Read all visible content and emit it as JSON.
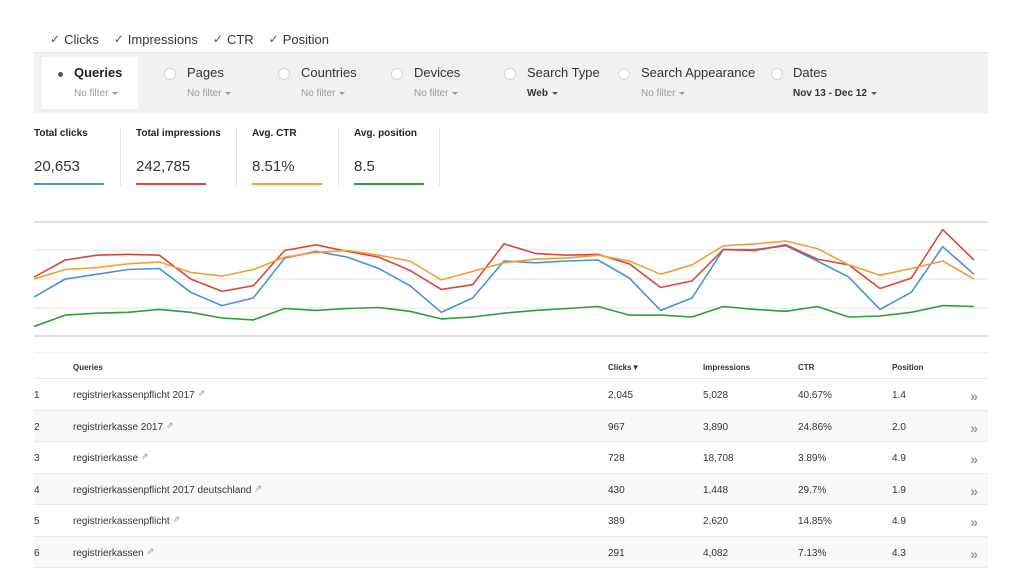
{
  "metric_toggles": [
    {
      "label": "Clicks",
      "checked": true
    },
    {
      "label": "Impressions",
      "checked": true
    },
    {
      "label": "CTR",
      "checked": true
    },
    {
      "label": "Position",
      "checked": true
    }
  ],
  "filters": [
    {
      "title": "Queries",
      "sub": "No filter",
      "active": true
    },
    {
      "title": "Pages",
      "sub": "No filter",
      "active": false
    },
    {
      "title": "Countries",
      "sub": "No filter",
      "active": false
    },
    {
      "title": "Devices",
      "sub": "No filter",
      "active": false
    },
    {
      "title": "Search Type",
      "sub": "Web",
      "active": false
    },
    {
      "title": "Search Appearance",
      "sub": "No filter",
      "active": false
    },
    {
      "title": "Dates",
      "sub": "Nov 13 - Dec 12",
      "active": false
    }
  ],
  "totals": [
    {
      "label": "Total clicks",
      "value": "20,653",
      "color": "#4a90d9"
    },
    {
      "label": "Total impressions",
      "value": "242,785",
      "color": "#d6483b"
    },
    {
      "label": "Avg. CTR",
      "value": "8.51%",
      "color": "#f0a030"
    },
    {
      "label": "Avg. position",
      "value": "8.5",
      "color": "#2f9d37"
    }
  ],
  "chart_data": {
    "type": "line",
    "x": [
      1,
      2,
      3,
      4,
      5,
      6,
      7,
      8,
      9,
      10,
      11,
      12,
      13,
      14,
      15,
      16,
      17,
      18,
      19,
      20,
      21,
      22,
      23,
      24,
      25,
      26,
      27,
      28,
      29,
      30,
      31
    ],
    "series": [
      {
        "name": "Clicks",
        "color": "#4a90d9",
        "values": [
          3.1,
          5.0,
          5.5,
          6.0,
          6.1,
          3.6,
          2.2,
          3.0,
          7.2,
          7.9,
          7.3,
          6.1,
          4.3,
          1.5,
          3.0,
          6.9,
          6.7,
          6.9,
          7.0,
          5.1,
          1.7,
          3.0,
          8.1,
          8.1,
          8.5,
          6.9,
          5.2,
          1.8,
          3.6,
          8.4,
          5.5
        ],
        "mask": [
          0,
          0,
          0,
          0,
          0,
          0,
          0,
          0,
          0,
          0,
          0,
          0,
          0,
          0,
          0,
          0,
          0,
          0,
          0,
          0,
          0,
          0,
          0,
          0,
          0,
          0,
          0,
          0,
          0,
          0,
          0
        ]
      },
      {
        "name": "Impressions",
        "color": "#d6483b",
        "values": [
          5.2,
          7.0,
          7.5,
          7.6,
          7.5,
          5.0,
          3.7,
          4.3,
          8.0,
          8.6,
          7.9,
          7.3,
          5.9,
          3.9,
          4.4,
          8.7,
          7.7,
          7.5,
          7.6,
          6.6,
          4.1,
          4.8,
          8.1,
          8.0,
          8.6,
          7.1,
          6.5,
          4.0,
          5.1,
          10.2,
          7.0
        ],
        "mask": []
      },
      {
        "name": "CTR",
        "color": "#f0a030",
        "values": [
          5.0,
          6.0,
          6.2,
          6.6,
          6.8,
          5.7,
          5.3,
          6.0,
          7.3,
          7.8,
          8.0,
          7.5,
          6.9,
          4.9,
          5.8,
          6.7,
          7.1,
          7.2,
          7.5,
          6.9,
          5.5,
          6.5,
          8.5,
          8.7,
          9.0,
          8.2,
          6.5,
          5.4,
          6.1,
          6.9,
          5.0
        ],
        "mask": []
      },
      {
        "name": "Position",
        "color": "#2f9d37",
        "values": [
          0.0,
          1.2,
          1.4,
          1.5,
          1.8,
          1.5,
          0.9,
          0.7,
          1.9,
          1.7,
          1.9,
          2.0,
          1.6,
          0.8,
          1.0,
          1.4,
          1.7,
          1.9,
          2.1,
          1.2,
          1.2,
          1.0,
          2.1,
          1.8,
          1.6,
          2.1,
          1.0,
          1.1,
          1.5,
          2.2,
          2.1
        ],
        "mask": []
      }
    ],
    "ylim": [
      -1,
      11
    ],
    "grid": true
  },
  "table": {
    "headers": {
      "queries": "Queries",
      "clicks": "Clicks",
      "sort_indicator": "▼",
      "impressions": "Impressions",
      "ctr": "CTR",
      "position": "Position"
    },
    "rows": [
      {
        "rank": "1",
        "query": "registrierkassenpflicht 2017",
        "clicks": "2,045",
        "impressions": "5,028",
        "ctr": "40.67%",
        "position": "1.4"
      },
      {
        "rank": "2",
        "query": "registrierkasse 2017",
        "clicks": "967",
        "impressions": "3,890",
        "ctr": "24.86%",
        "position": "2.0"
      },
      {
        "rank": "3",
        "query": "registrierkasse",
        "clicks": "728",
        "impressions": "18,708",
        "ctr": "3.89%",
        "position": "4.9"
      },
      {
        "rank": "4",
        "query": "registrierkassenpflicht 2017 deutschland",
        "clicks": "430",
        "impressions": "1,448",
        "ctr": "29.7%",
        "position": "1.9"
      },
      {
        "rank": "5",
        "query": "registrierkassenpflicht",
        "clicks": "389",
        "impressions": "2,620",
        "ctr": "14.85%",
        "position": "4.9"
      },
      {
        "rank": "6",
        "query": "registrierkassen",
        "clicks": "291",
        "impressions": "4,082",
        "ctr": "7.13%",
        "position": "4.3"
      }
    ]
  },
  "icons": {
    "check": "✓",
    "external_link": "⇗",
    "row_more": "»"
  }
}
